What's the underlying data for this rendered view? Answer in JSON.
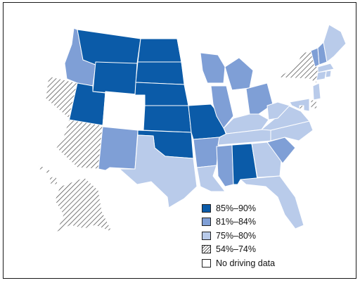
{
  "legend": [
    {
      "label": "85%–90%",
      "color": "#0b5ba8",
      "pattern": "solid"
    },
    {
      "label": "81%–84%",
      "color": "#7f9fd6",
      "pattern": "solid"
    },
    {
      "label": "75%–80%",
      "color": "#b9cbea",
      "pattern": "solid"
    },
    {
      "label": "54%–74%",
      "color": "#ffffff",
      "pattern": "hatch"
    },
    {
      "label": "No driving data",
      "color": "#ffffff",
      "pattern": "none"
    }
  ],
  "regions": [
    {
      "id": "WA",
      "category": "No driving data"
    },
    {
      "id": "OR",
      "category": "No driving data"
    },
    {
      "id": "CA",
      "category": "No driving data"
    },
    {
      "id": "NV",
      "category": "54%–74%"
    },
    {
      "id": "ID",
      "category": "81%–84%"
    },
    {
      "id": "MT",
      "category": "85%–90%"
    },
    {
      "id": "WY",
      "category": "85%–90%"
    },
    {
      "id": "UT",
      "category": "85%–90%"
    },
    {
      "id": "AZ",
      "category": "54%–74%"
    },
    {
      "id": "CO",
      "category": "No driving data"
    },
    {
      "id": "NM",
      "category": "81%–84%"
    },
    {
      "id": "ND",
      "category": "85%–90%"
    },
    {
      "id": "SD",
      "category": "85%–90%"
    },
    {
      "id": "NE",
      "category": "85%–90%"
    },
    {
      "id": "KS",
      "category": "85%–90%"
    },
    {
      "id": "OK",
      "category": "85%–90%"
    },
    {
      "id": "TX",
      "category": "75%–80%"
    },
    {
      "id": "MN",
      "category": "No driving data"
    },
    {
      "id": "IA",
      "category": "No driving data"
    },
    {
      "id": "MO",
      "category": "85%–90%"
    },
    {
      "id": "AR",
      "category": "81%–84%"
    },
    {
      "id": "LA",
      "category": "75%–80%"
    },
    {
      "id": "WI",
      "category": "81%–84%"
    },
    {
      "id": "IL",
      "category": "81%–84%"
    },
    {
      "id": "MI",
      "category": "81%–84%"
    },
    {
      "id": "IN",
      "category": "No driving data"
    },
    {
      "id": "OH",
      "category": "81%–84%"
    },
    {
      "id": "KY",
      "category": "75%–80%"
    },
    {
      "id": "TN",
      "category": "75%–80%"
    },
    {
      "id": "MS",
      "category": "81%–84%"
    },
    {
      "id": "AL",
      "category": "85%–90%"
    },
    {
      "id": "GA",
      "category": "75%–80%"
    },
    {
      "id": "FL",
      "category": "75%–80%"
    },
    {
      "id": "SC",
      "category": "81%–84%"
    },
    {
      "id": "NC",
      "category": "75%–80%"
    },
    {
      "id": "VA",
      "category": "75%–80%"
    },
    {
      "id": "WV",
      "category": "75%–80%"
    },
    {
      "id": "PA",
      "category": "No driving data"
    },
    {
      "id": "NY",
      "category": "54%–74%"
    },
    {
      "id": "VT",
      "category": "81%–84%"
    },
    {
      "id": "NH",
      "category": "81%–84%"
    },
    {
      "id": "ME",
      "category": "75%–80%"
    },
    {
      "id": "MA",
      "category": "75%–80%"
    },
    {
      "id": "CT",
      "category": "75%–80%"
    },
    {
      "id": "RI",
      "category": "75%–80%"
    },
    {
      "id": "NJ",
      "category": "75%–80%"
    },
    {
      "id": "DE",
      "category": "54%–74%"
    },
    {
      "id": "MD",
      "category": "75%–80%"
    },
    {
      "id": "DC",
      "category": "54%–74%"
    },
    {
      "id": "AK",
      "category": "54%–74%"
    },
    {
      "id": "HI",
      "category": "54%–74%"
    }
  ]
}
